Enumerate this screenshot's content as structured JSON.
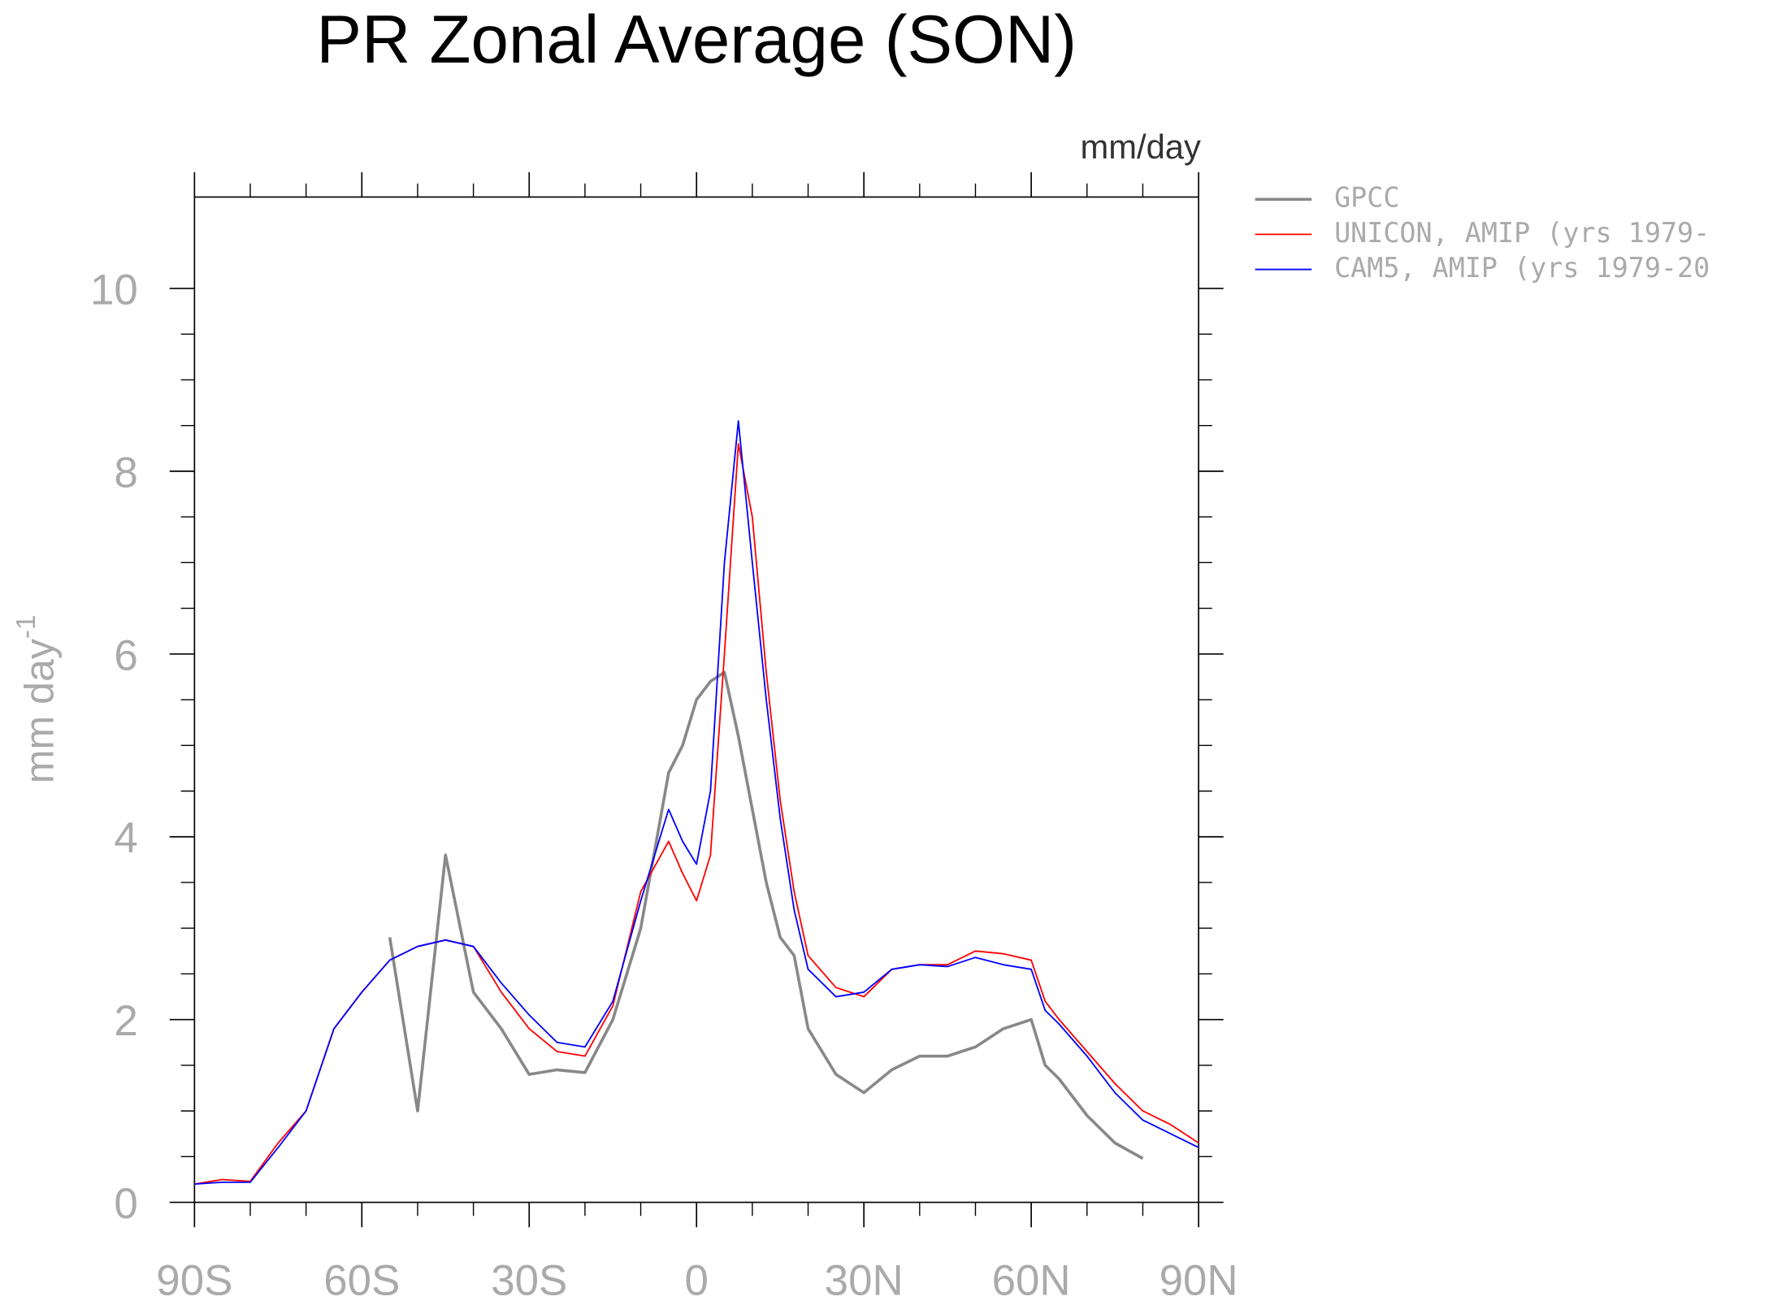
{
  "chart_data": {
    "type": "line",
    "title": "PR Zonal Average (SON)",
    "units_label": "mm/day",
    "y_label": "mm day",
    "y_label_exponent": "-1",
    "x": [
      -90,
      -85,
      -80,
      -75,
      -70,
      -65,
      -60,
      -55,
      -50,
      -45,
      -40,
      -35,
      -30,
      -25,
      -20,
      -15,
      -10,
      -5,
      -2.5,
      0,
      2.5,
      5,
      7.5,
      10,
      12.5,
      15,
      17.5,
      20,
      25,
      30,
      35,
      40,
      45,
      50,
      55,
      60,
      62.5,
      65,
      70,
      75,
      80,
      85,
      90
    ],
    "series": [
      {
        "name": "GPCC",
        "color": "#888888",
        "values": [
          null,
          null,
          null,
          null,
          null,
          null,
          null,
          2.9,
          1.0,
          3.8,
          2.3,
          1.9,
          1.4,
          1.45,
          1.42,
          2.0,
          3.0,
          4.7,
          5.0,
          5.5,
          5.7,
          5.8,
          5.1,
          4.3,
          3.5,
          2.9,
          2.7,
          1.9,
          1.4,
          1.2,
          1.45,
          1.6,
          1.6,
          1.7,
          1.9,
          2.0,
          1.5,
          1.35,
          0.95,
          0.65,
          0.48,
          null,
          null
        ]
      },
      {
        "name": "UNICON, AMIP (yrs 1979-",
        "color": "#ff0000",
        "values": [
          0.2,
          0.25,
          0.23,
          0.65,
          1.0,
          1.9,
          2.3,
          2.65,
          2.8,
          2.87,
          2.8,
          2.3,
          1.9,
          1.65,
          1.6,
          2.15,
          3.4,
          3.95,
          3.6,
          3.3,
          3.8,
          6.0,
          8.3,
          7.5,
          5.8,
          4.4,
          3.4,
          2.7,
          2.35,
          2.25,
          2.55,
          2.6,
          2.6,
          2.75,
          2.72,
          2.65,
          2.2,
          2.0,
          1.65,
          1.3,
          1.0,
          0.85,
          0.65
        ]
      },
      {
        "name": "CAM5, AMIP (yrs 1979-20",
        "color": "#0000ff",
        "values": [
          0.2,
          0.22,
          0.22,
          0.6,
          1.0,
          1.9,
          2.3,
          2.65,
          2.8,
          2.87,
          2.8,
          2.4,
          2.05,
          1.75,
          1.7,
          2.2,
          3.3,
          4.3,
          3.95,
          3.7,
          4.5,
          7.0,
          8.55,
          7.0,
          5.5,
          4.2,
          3.2,
          2.55,
          2.25,
          2.3,
          2.55,
          2.6,
          2.58,
          2.68,
          2.6,
          2.55,
          2.1,
          1.95,
          1.6,
          1.2,
          0.9,
          0.75,
          0.6
        ]
      }
    ],
    "xlim": [
      -90,
      90
    ],
    "xticks": [
      {
        "value": -90,
        "label": "90S"
      },
      {
        "value": -60,
        "label": "60S"
      },
      {
        "value": -30,
        "label": "30S"
      },
      0,
      {
        "value": 30,
        "label": "30N"
      },
      {
        "value": 60,
        "label": "60N"
      },
      {
        "value": 90,
        "label": "90N"
      }
    ],
    "ylim": [
      0,
      11
    ],
    "yticks": [
      0,
      2,
      4,
      6,
      8,
      10
    ],
    "grid": false
  }
}
